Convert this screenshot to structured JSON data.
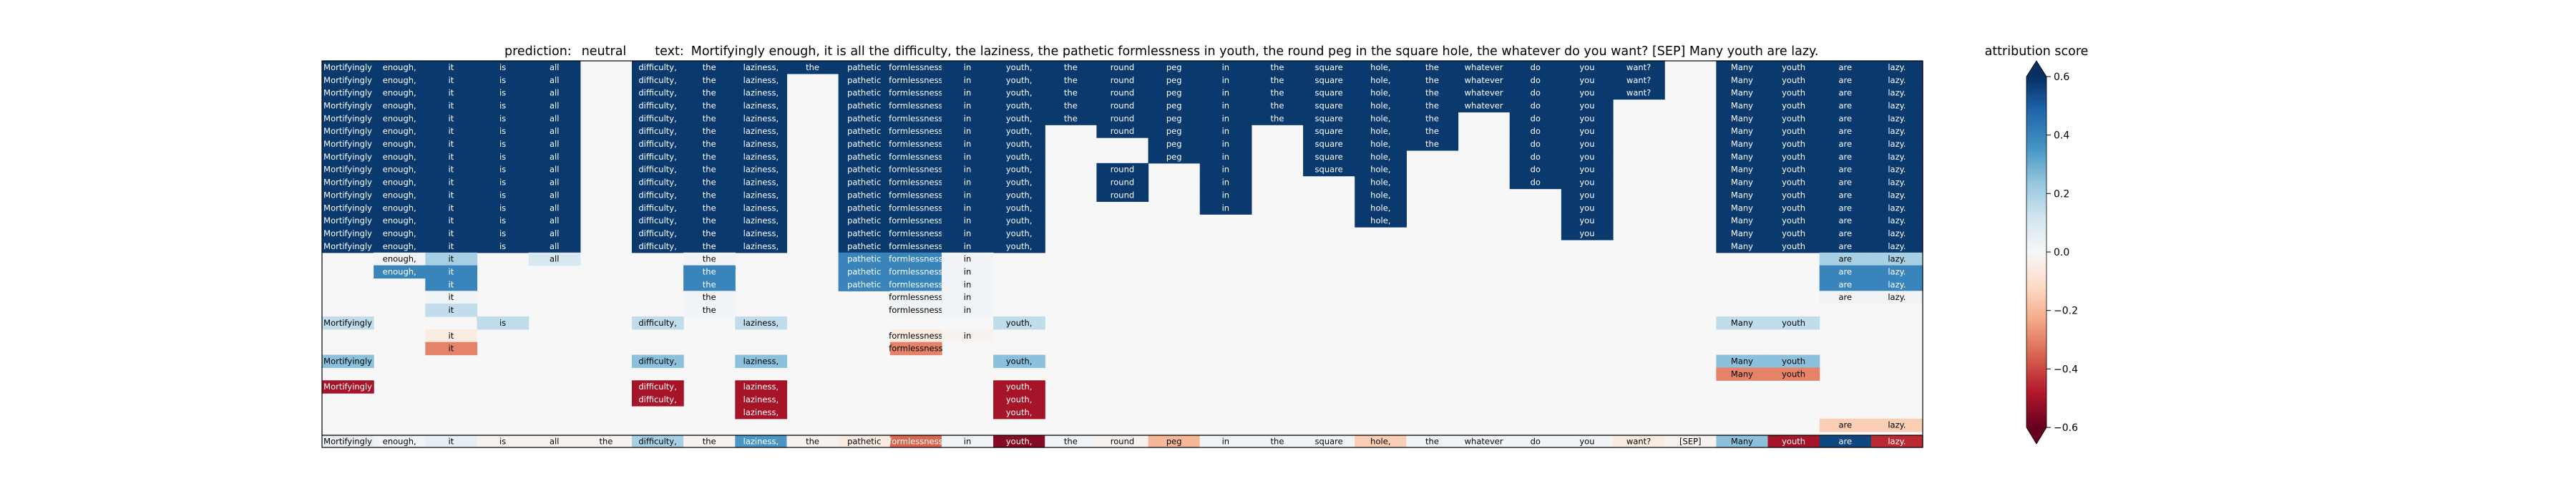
{
  "header": {
    "prediction_label": "prediction:",
    "prediction_value": "neutral",
    "text_label": "text:",
    "text_value": "Mortifyingly enough, it is all the difficulty, the laziness, the pathetic formlessness in youth, the round peg in the square hole, the whatever do you want? [SEP] Many youth are lazy."
  },
  "chart_data": {
    "type": "heatmap",
    "tokens": [
      "Mortifyingly",
      "enough,",
      "it",
      "is",
      "all",
      "the",
      "difficulty,",
      "the",
      "laziness,",
      "the",
      "pathetic",
      "formlessness",
      "in",
      "youth,",
      "the",
      "round",
      "peg",
      "in",
      "the",
      "square",
      "hole,",
      "the",
      "whatever",
      "do",
      "you",
      "want?",
      "[SEP]",
      "Many",
      "youth",
      "are",
      "lazy."
    ],
    "colorbar": {
      "label": "attribution score",
      "min": -0.6,
      "max": 0.6,
      "ticks": [
        0.6,
        0.4,
        0.2,
        0.0,
        -0.2,
        -0.4,
        -0.6
      ],
      "tick_labels": [
        "0.6",
        "0.4",
        "0.2",
        "0.0",
        "−0.2",
        "−0.4",
        "−0.6"
      ],
      "colors": [
        "#67001f",
        "#b2182b",
        "#d6604d",
        "#f4a582",
        "#fddbc7",
        "#f7f7f7",
        "#d1e5f0",
        "#92c5de",
        "#4393c3",
        "#2166ac",
        "#053061"
      ]
    },
    "background_value": 0.0,
    "rows": [
      [
        0.58,
        0.58,
        0.58,
        0.58,
        0.58,
        null,
        0.58,
        0.58,
        0.58,
        0.58,
        0.58,
        0.58,
        0.58,
        0.58,
        0.58,
        0.58,
        0.58,
        0.58,
        0.58,
        0.58,
        0.58,
        0.58,
        0.58,
        0.58,
        0.58,
        0.58,
        null,
        0.58,
        0.58,
        0.58,
        0.58
      ],
      [
        0.58,
        0.58,
        0.58,
        0.58,
        0.58,
        null,
        0.58,
        0.58,
        0.58,
        null,
        0.58,
        0.58,
        0.58,
        0.58,
        0.58,
        0.58,
        0.58,
        0.58,
        0.58,
        0.58,
        0.58,
        0.58,
        0.58,
        0.58,
        0.58,
        0.58,
        null,
        0.58,
        0.58,
        0.58,
        0.58
      ],
      [
        0.58,
        0.58,
        0.58,
        0.58,
        0.58,
        null,
        0.58,
        0.58,
        0.58,
        null,
        0.58,
        0.58,
        0.58,
        0.58,
        0.58,
        0.58,
        0.58,
        0.58,
        0.58,
        0.58,
        0.58,
        0.58,
        0.58,
        0.58,
        0.58,
        0.58,
        null,
        0.58,
        0.58,
        0.58,
        0.58
      ],
      [
        0.58,
        0.58,
        0.58,
        0.58,
        0.58,
        null,
        0.58,
        0.58,
        0.58,
        null,
        0.58,
        0.58,
        0.58,
        0.58,
        0.58,
        0.58,
        0.58,
        0.58,
        0.58,
        0.58,
        0.58,
        0.58,
        0.58,
        0.58,
        0.58,
        null,
        null,
        0.58,
        0.58,
        0.58,
        0.58
      ],
      [
        0.58,
        0.58,
        0.58,
        0.58,
        0.58,
        null,
        0.58,
        0.58,
        0.58,
        null,
        0.58,
        0.58,
        0.58,
        0.58,
        0.58,
        0.58,
        0.58,
        0.58,
        0.58,
        0.58,
        0.58,
        0.58,
        null,
        0.58,
        0.58,
        null,
        null,
        0.58,
        0.58,
        0.58,
        0.58
      ],
      [
        0.58,
        0.58,
        0.58,
        0.58,
        0.58,
        null,
        0.58,
        0.58,
        0.58,
        null,
        0.58,
        0.58,
        0.58,
        0.58,
        null,
        0.58,
        0.58,
        0.58,
        null,
        0.58,
        0.58,
        0.58,
        null,
        0.58,
        0.58,
        null,
        null,
        0.58,
        0.58,
        0.58,
        0.58
      ],
      [
        0.58,
        0.58,
        0.58,
        0.58,
        0.58,
        null,
        0.58,
        0.58,
        0.58,
        null,
        0.58,
        0.58,
        0.58,
        0.58,
        null,
        null,
        0.58,
        0.58,
        null,
        0.58,
        0.58,
        0.58,
        null,
        0.58,
        0.58,
        null,
        null,
        0.58,
        0.58,
        0.58,
        0.58
      ],
      [
        0.58,
        0.58,
        0.58,
        0.58,
        0.58,
        null,
        0.58,
        0.58,
        0.58,
        null,
        0.58,
        0.58,
        0.58,
        0.58,
        null,
        null,
        0.58,
        0.58,
        null,
        0.58,
        0.58,
        null,
        null,
        0.58,
        0.58,
        null,
        null,
        0.58,
        0.58,
        0.58,
        0.58
      ],
      [
        0.58,
        0.58,
        0.58,
        0.58,
        0.58,
        null,
        0.58,
        0.58,
        0.58,
        null,
        0.58,
        0.58,
        0.58,
        0.58,
        null,
        0.58,
        null,
        0.58,
        null,
        0.58,
        0.58,
        null,
        null,
        0.58,
        0.58,
        null,
        null,
        0.58,
        0.58,
        0.58,
        0.58
      ],
      [
        0.58,
        0.58,
        0.58,
        0.58,
        0.58,
        null,
        0.58,
        0.58,
        0.58,
        null,
        0.58,
        0.58,
        0.58,
        0.58,
        null,
        0.58,
        null,
        0.58,
        null,
        null,
        0.58,
        null,
        null,
        0.58,
        0.58,
        null,
        null,
        0.58,
        0.58,
        0.58,
        0.58
      ],
      [
        0.58,
        0.58,
        0.58,
        0.58,
        0.58,
        null,
        0.58,
        0.58,
        0.58,
        null,
        0.58,
        0.58,
        0.58,
        0.58,
        null,
        0.58,
        null,
        0.58,
        null,
        null,
        0.58,
        null,
        null,
        null,
        0.58,
        null,
        null,
        0.58,
        0.58,
        0.58,
        0.58
      ],
      [
        0.58,
        0.58,
        0.58,
        0.58,
        0.58,
        null,
        0.58,
        0.58,
        0.58,
        null,
        0.58,
        0.58,
        0.58,
        0.58,
        null,
        null,
        null,
        0.58,
        null,
        null,
        0.58,
        null,
        null,
        null,
        0.58,
        null,
        null,
        0.58,
        0.58,
        0.58,
        0.58
      ],
      [
        0.58,
        0.58,
        0.58,
        0.58,
        0.58,
        null,
        0.58,
        0.58,
        0.58,
        null,
        0.58,
        0.58,
        0.58,
        0.58,
        null,
        null,
        null,
        null,
        null,
        null,
        0.58,
        null,
        null,
        null,
        0.58,
        null,
        null,
        0.58,
        0.58,
        0.58,
        0.58
      ],
      [
        0.58,
        0.58,
        0.58,
        0.58,
        0.58,
        null,
        0.58,
        0.58,
        0.58,
        null,
        0.58,
        0.58,
        0.58,
        0.58,
        null,
        null,
        null,
        null,
        null,
        null,
        null,
        null,
        null,
        null,
        0.58,
        null,
        null,
        0.58,
        0.58,
        0.58,
        0.58
      ],
      [
        0.58,
        0.58,
        0.58,
        0.58,
        0.58,
        null,
        0.58,
        0.58,
        0.58,
        null,
        0.58,
        0.58,
        0.58,
        0.58,
        null,
        null,
        null,
        null,
        null,
        null,
        null,
        null,
        null,
        null,
        null,
        null,
        null,
        0.58,
        0.58,
        0.58,
        0.58
      ],
      [
        null,
        0.02,
        0.2,
        null,
        0.1,
        null,
        null,
        0.02,
        null,
        null,
        0.4,
        0.4,
        0.02,
        null,
        null,
        null,
        null,
        null,
        null,
        null,
        null,
        null,
        null,
        null,
        null,
        null,
        null,
        null,
        null,
        0.2,
        0.2
      ],
      [
        null,
        0.4,
        0.4,
        null,
        null,
        null,
        null,
        0.4,
        null,
        null,
        0.4,
        0.4,
        0.02,
        null,
        null,
        null,
        null,
        null,
        null,
        null,
        null,
        null,
        null,
        null,
        null,
        null,
        null,
        null,
        null,
        0.4,
        0.4
      ],
      [
        null,
        null,
        0.4,
        null,
        null,
        null,
        null,
        0.4,
        null,
        null,
        0.4,
        0.4,
        0.02,
        null,
        null,
        null,
        null,
        null,
        null,
        null,
        null,
        null,
        null,
        null,
        null,
        null,
        null,
        null,
        null,
        0.4,
        0.4
      ],
      [
        null,
        null,
        0.02,
        null,
        null,
        null,
        null,
        0.02,
        null,
        null,
        null,
        0.02,
        0.02,
        null,
        null,
        null,
        null,
        null,
        null,
        null,
        null,
        null,
        null,
        null,
        null,
        null,
        null,
        null,
        null,
        0.02,
        0.02
      ],
      [
        null,
        null,
        0.15,
        null,
        null,
        null,
        null,
        0.02,
        null,
        null,
        null,
        0.02,
        0.02,
        null,
        null,
        null,
        null,
        null,
        null,
        null,
        null,
        null,
        null,
        null,
        null,
        null,
        null,
        null,
        null,
        null,
        null
      ],
      [
        0.15,
        null,
        null,
        0.15,
        null,
        null,
        0.15,
        null,
        0.15,
        null,
        null,
        null,
        null,
        0.15,
        null,
        null,
        null,
        null,
        null,
        null,
        null,
        null,
        null,
        null,
        null,
        null,
        null,
        0.15,
        0.15,
        null,
        null
      ],
      [
        null,
        null,
        -0.05,
        null,
        null,
        null,
        null,
        null,
        null,
        null,
        null,
        -0.05,
        -0.02,
        null,
        null,
        null,
        null,
        null,
        null,
        null,
        null,
        null,
        null,
        null,
        null,
        null,
        null,
        null,
        null,
        null,
        null
      ],
      [
        null,
        null,
        -0.3,
        null,
        null,
        null,
        null,
        null,
        null,
        null,
        null,
        -0.3,
        null,
        null,
        null,
        null,
        null,
        null,
        null,
        null,
        null,
        null,
        null,
        null,
        null,
        null,
        null,
        null,
        null,
        null,
        null
      ],
      [
        0.25,
        null,
        null,
        null,
        null,
        null,
        0.25,
        null,
        0.25,
        null,
        null,
        null,
        null,
        0.25,
        null,
        null,
        null,
        null,
        null,
        null,
        null,
        null,
        null,
        null,
        null,
        null,
        null,
        0.25,
        0.25,
        null,
        null
      ],
      [
        null,
        null,
        null,
        null,
        null,
        null,
        null,
        null,
        null,
        null,
        null,
        null,
        null,
        null,
        null,
        null,
        null,
        null,
        null,
        null,
        null,
        null,
        null,
        null,
        null,
        null,
        null,
        -0.3,
        -0.3,
        null,
        null
      ],
      [
        -0.5,
        null,
        null,
        null,
        null,
        null,
        -0.5,
        null,
        -0.5,
        null,
        null,
        null,
        null,
        -0.5,
        null,
        null,
        null,
        null,
        null,
        null,
        null,
        null,
        null,
        null,
        null,
        null,
        null,
        null,
        null,
        null,
        null
      ],
      [
        null,
        null,
        null,
        null,
        null,
        null,
        -0.5,
        null,
        -0.5,
        null,
        null,
        null,
        null,
        -0.5,
        null,
        null,
        null,
        null,
        null,
        null,
        null,
        null,
        null,
        null,
        null,
        null,
        null,
        null,
        null,
        null,
        null
      ],
      [
        null,
        null,
        null,
        null,
        null,
        null,
        null,
        null,
        -0.5,
        null,
        null,
        null,
        null,
        -0.5,
        null,
        null,
        null,
        null,
        null,
        null,
        null,
        null,
        null,
        null,
        null,
        null,
        null,
        null,
        null,
        null,
        null
      ],
      [
        null,
        null,
        null,
        null,
        null,
        null,
        null,
        null,
        null,
        null,
        null,
        null,
        null,
        null,
        null,
        null,
        null,
        null,
        null,
        null,
        null,
        null,
        null,
        null,
        null,
        null,
        null,
        null,
        null,
        -0.15,
        -0.15
      ]
    ],
    "summary_row": [
      0.05,
      0.02,
      0.05,
      -0.02,
      -0.02,
      -0.02,
      0.2,
      -0.02,
      0.35,
      -0.02,
      -0.05,
      -0.35,
      0.02,
      -0.55,
      0.02,
      -0.02,
      -0.2,
      0.02,
      0.02,
      0.02,
      -0.15,
      0.02,
      0.02,
      0.02,
      0.02,
      -0.05,
      -0.02,
      0.25,
      -0.5,
      0.55,
      -0.45
    ]
  }
}
